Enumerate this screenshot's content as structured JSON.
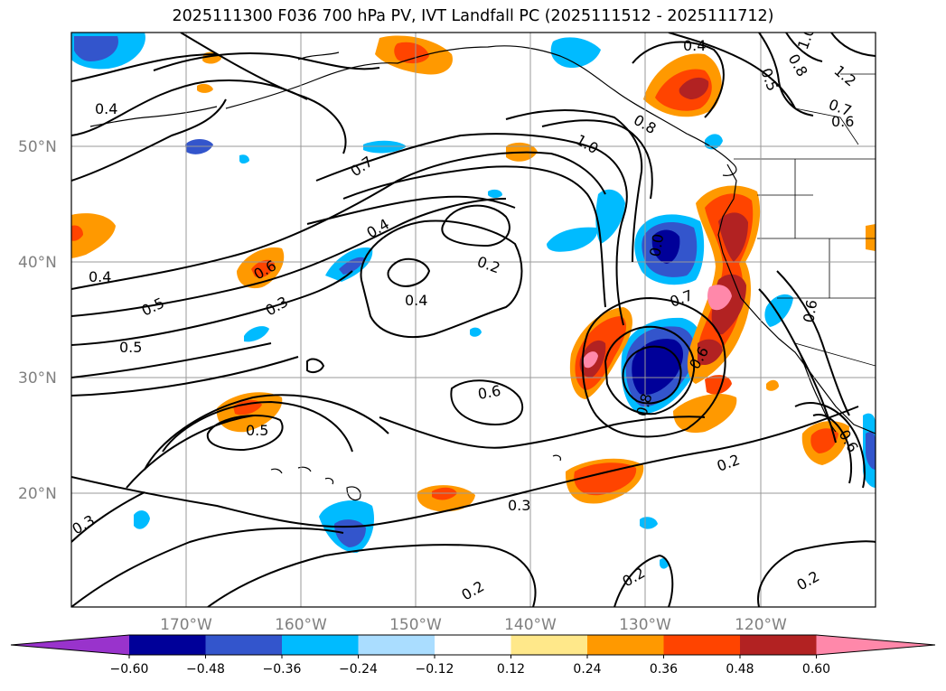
{
  "title": "2025111300 F036 700 hPa PV, IVT Landfall PC (2025111512 - 2025111712)",
  "lat_axis": [
    {
      "value": 50,
      "label": "50°N"
    },
    {
      "value": 40,
      "label": "40°N"
    },
    {
      "value": 30,
      "label": "30°N"
    },
    {
      "value": 20,
      "label": "20°N"
    }
  ],
  "lon_axis": [
    {
      "value": -170,
      "label": "170°W"
    },
    {
      "value": -160,
      "label": "160°W"
    },
    {
      "value": -150,
      "label": "150°W"
    },
    {
      "value": -140,
      "label": "140°W"
    },
    {
      "value": -130,
      "label": "130°W"
    },
    {
      "value": -120,
      "label": "120°W"
    }
  ],
  "colorbar": {
    "levels": [
      "−0.60",
      "−0.48",
      "−0.36",
      "−0.24",
      "−0.12",
      "0.12",
      "0.24",
      "0.36",
      "0.48",
      "0.60"
    ],
    "colors": [
      "#9933cc",
      "#000099",
      "#3355cc",
      "#00bbff",
      "#aaddff",
      "#ffffff",
      "#ffe88a",
      "#ff9900",
      "#ff4400",
      "#b22222",
      "#ff88aa"
    ]
  },
  "contour_labels": [
    "0.4",
    "0.4",
    "0.5",
    "0.5",
    "0.5",
    "0.7",
    "0.4",
    "0.6",
    "0.3",
    "0.4",
    "0.2",
    "0.6",
    "0.3",
    "0.2",
    "0.3",
    "0.2",
    "0.2",
    "0.2",
    "1.0",
    "0.8",
    "0.4",
    "0.5",
    "0.8",
    "1.0",
    "1.2",
    "0.7",
    "0.6",
    "0.0",
    "0.7",
    "0.6",
    "0.8",
    "0.6",
    "0.6"
  ]
}
